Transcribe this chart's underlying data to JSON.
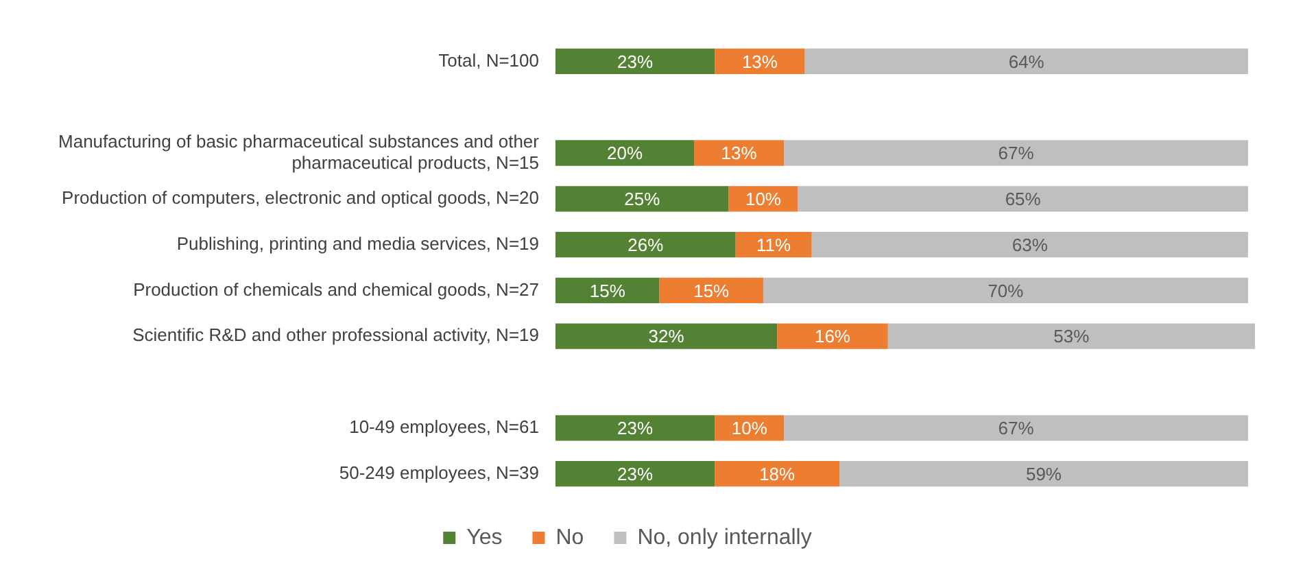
{
  "chart_data": {
    "type": "bar",
    "orientation": "horizontal",
    "stacked": true,
    "legend": "bottom",
    "tick_labels": "y",
    "xlim": [
      0,
      101
    ],
    "categories": [
      "Total, N=100",
      null,
      "Manufacturing of basic pharmaceutical substances and other pharmaceutical products, N=15",
      "Production of computers, electronic and optical goods, N=20",
      "Publishing, printing and media services, N=19",
      "Production of chemicals and chemical goods, N=27",
      "Scientific R&D and other professional activity, N=19",
      null,
      "10-49 employees, N=61",
      "50-249 employees, N=39"
    ],
    "series": [
      {
        "name": "Yes",
        "color": "#548235",
        "values": [
          23,
          null,
          20,
          25,
          26,
          15,
          32,
          null,
          23,
          23
        ],
        "value_labels": [
          "23%",
          null,
          "20%",
          "25%",
          "26%",
          "15%",
          "32%",
          null,
          "23%",
          "23%"
        ]
      },
      {
        "name": "No",
        "color": "#ed7d31",
        "values": [
          13,
          null,
          13,
          10,
          11,
          15,
          16,
          null,
          10,
          18
        ],
        "value_labels": [
          "13%",
          null,
          "13%",
          "10%",
          "11%",
          "15%",
          "16%",
          null,
          "10%",
          "18%"
        ]
      },
      {
        "name": "No, only internally",
        "color": "#bfbfbf",
        "values": [
          64,
          null,
          67,
          65,
          63,
          70,
          53,
          null,
          67,
          59
        ],
        "value_labels": [
          "64%",
          null,
          "67%",
          "65%",
          "63%",
          "70%",
          "53%",
          null,
          "67%",
          "59%"
        ]
      }
    ]
  }
}
